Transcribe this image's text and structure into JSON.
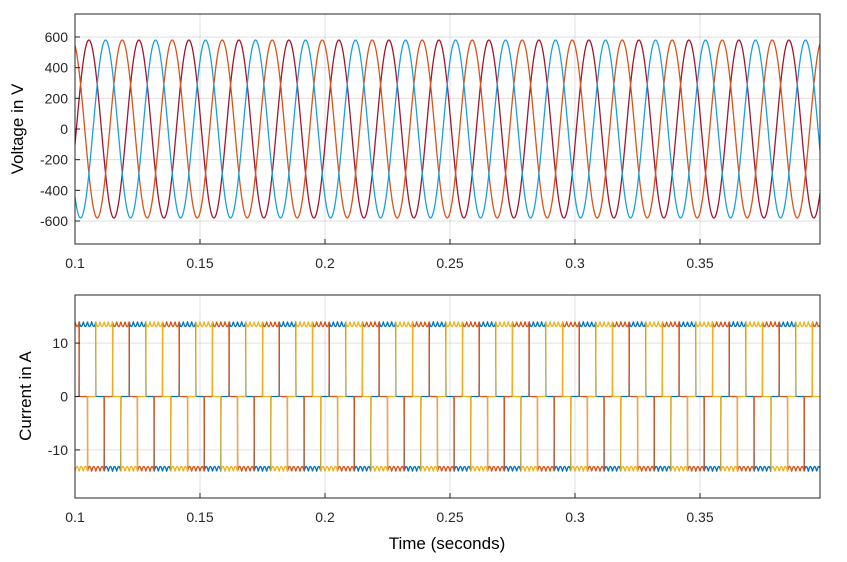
{
  "chart_data": [
    {
      "type": "line",
      "title": "",
      "xlabel": "",
      "ylabel": "Voltage in V",
      "xlim": [
        0.1,
        0.398
      ],
      "ylim": [
        -750,
        750
      ],
      "xticks": [
        0.1,
        0.15,
        0.2,
        0.25,
        0.3,
        0.35
      ],
      "xtick_labels": [
        "0.1",
        "0.15",
        "0.2",
        "0.25",
        "0.3",
        "0.35"
      ],
      "yticks": [
        -600,
        -400,
        -200,
        0,
        200,
        400,
        600
      ],
      "ytick_labels": [
        "-600",
        "-400",
        "-200",
        "0",
        "200",
        "400",
        "600"
      ],
      "grid": true,
      "waveform": {
        "shape": "sine",
        "amplitude": 580,
        "frequency_hz": 50,
        "phases_deg": [
          -10,
          110,
          230
        ],
        "x_start": 0.1,
        "x_end": 0.398
      },
      "series": [
        {
          "color": "#A2142F"
        },
        {
          "color": "#D95319"
        },
        {
          "color": "#1AA0DC"
        }
      ]
    },
    {
      "type": "line",
      "title": "",
      "xlabel": "Time (seconds)",
      "ylabel": "Current in A",
      "xlim": [
        0.1,
        0.398
      ],
      "ylim": [
        -19,
        19
      ],
      "xticks": [
        0.1,
        0.15,
        0.2,
        0.25,
        0.3,
        0.35
      ],
      "xtick_labels": [
        "0.1",
        "0.15",
        "0.2",
        "0.25",
        "0.3",
        "0.35"
      ],
      "yticks": [
        -10,
        0,
        10
      ],
      "ytick_labels": [
        "-10",
        "0",
        "10"
      ],
      "grid": true,
      "waveform": {
        "shape": "quasi-square (120° conduction)",
        "amplitude": 14,
        "ripple": 0.9,
        "frequency_hz": 50,
        "phases_deg": [
          0,
          120,
          240
        ],
        "x_start": 0.1,
        "x_end": 0.398
      },
      "series": [
        {
          "color": "#0072BD"
        },
        {
          "color": "#D95319"
        },
        {
          "color": "#EDB120"
        }
      ]
    }
  ]
}
